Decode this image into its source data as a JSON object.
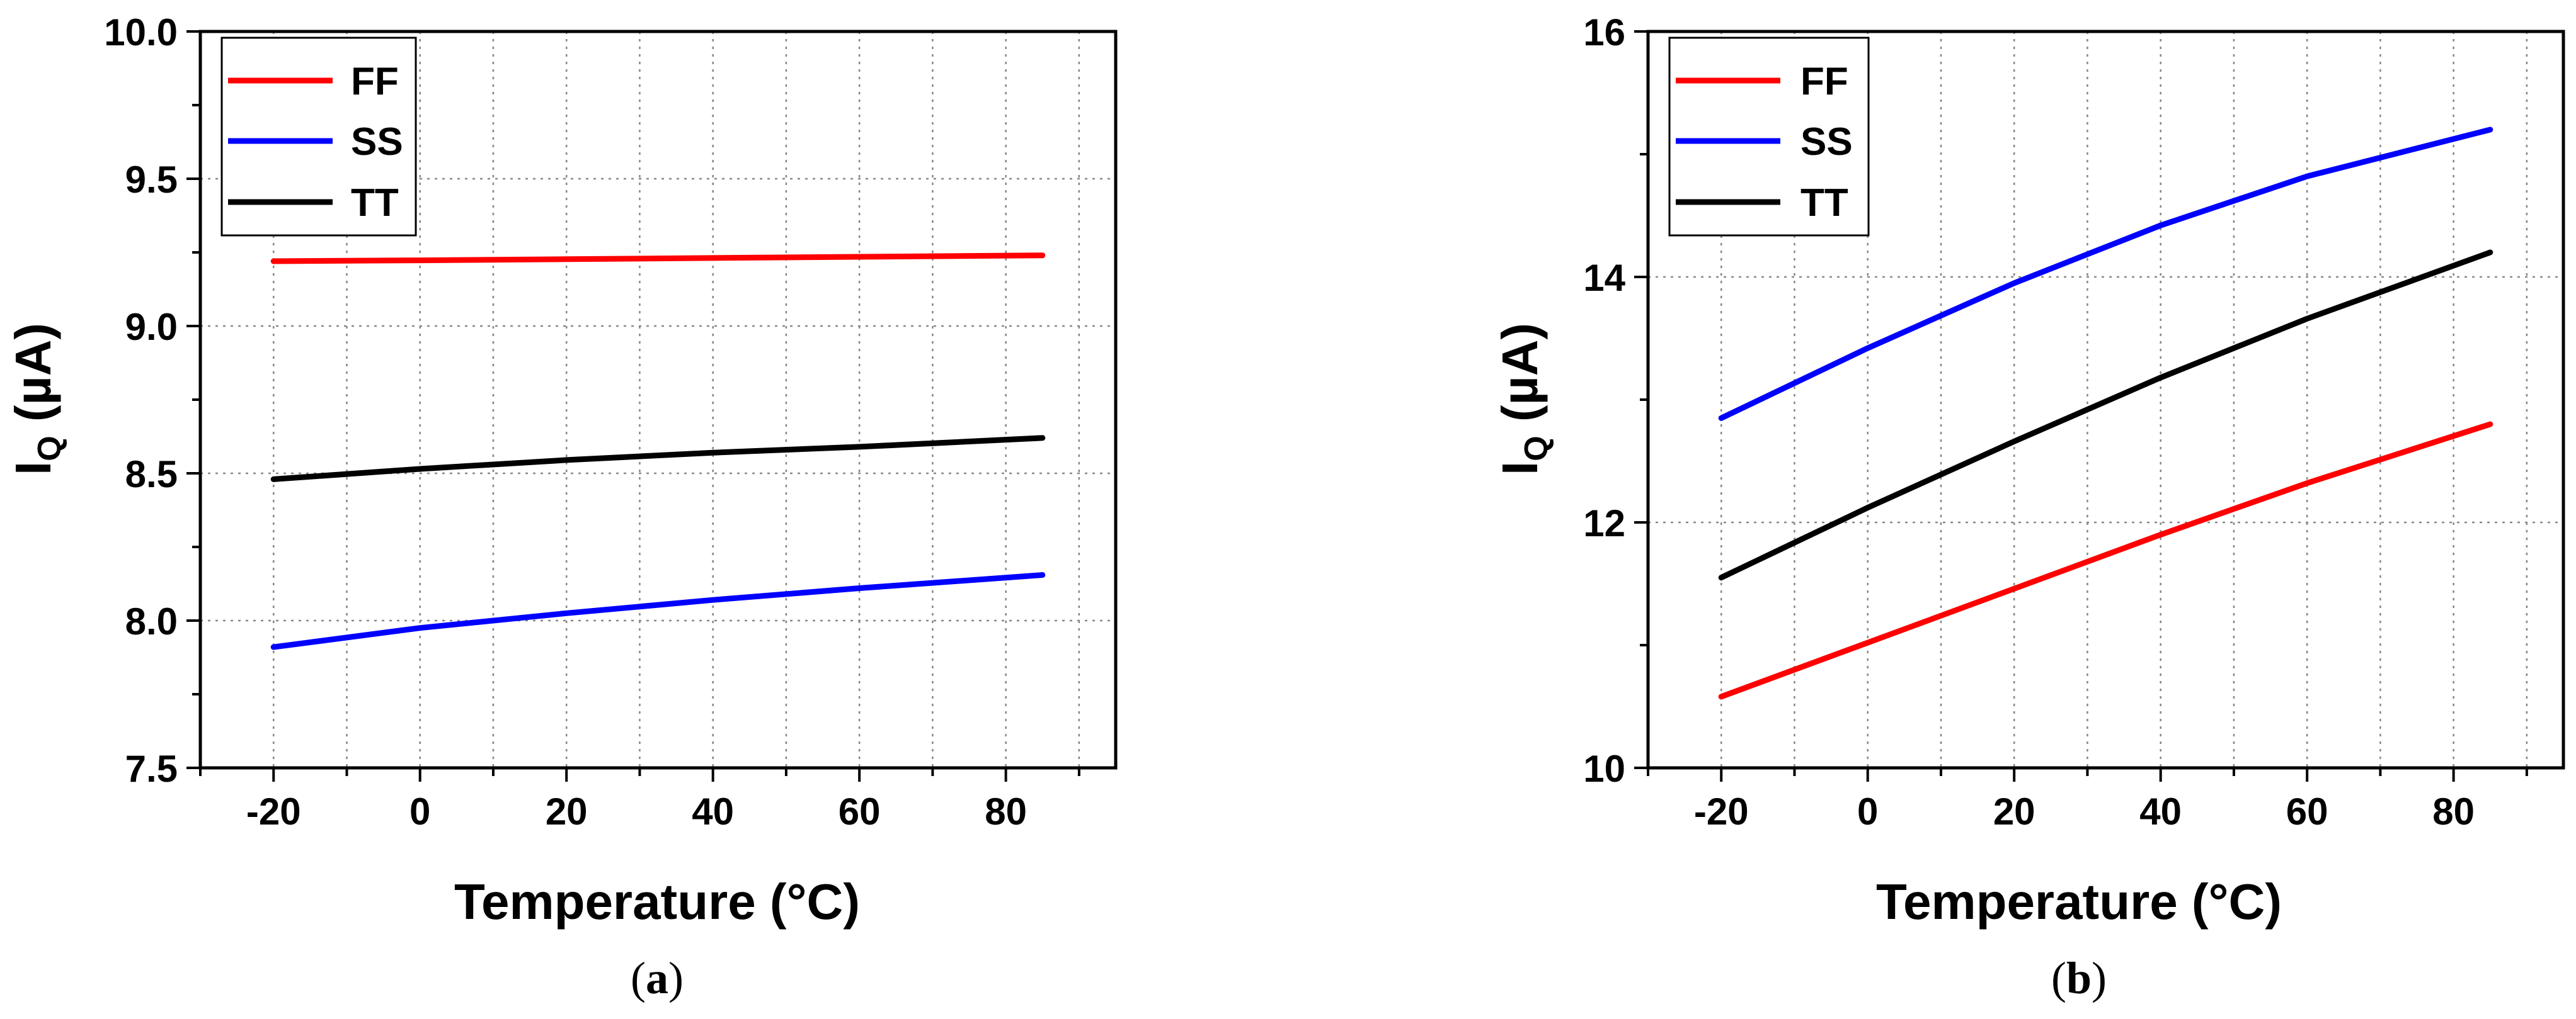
{
  "chart_data": [
    {
      "type": "line",
      "caption_letter": "a",
      "xlabel": "Temperature (°C)",
      "ylabel_main": "I",
      "ylabel_sub": "Q",
      "ylabel_unit": " (µA)",
      "xlim": [
        -30,
        95
      ],
      "ylim": [
        7.5,
        10.0
      ],
      "xticks": [
        -20,
        0,
        20,
        40,
        60,
        80
      ],
      "xtick_labels": [
        "-20",
        "0",
        "20",
        "40",
        "60",
        "80"
      ],
      "yticks": [
        7.5,
        8.0,
        8.5,
        9.0,
        9.5,
        10.0
      ],
      "ytick_labels": [
        "7.5",
        "8.0",
        "8.5",
        "9.0",
        "9.5",
        "10.0"
      ],
      "grid": true,
      "legend_position": "top-left",
      "series": [
        {
          "name": "FF",
          "color": "#ff0000",
          "x": [
            -20,
            0,
            20,
            40,
            60,
            85
          ],
          "values": [
            9.22,
            9.223,
            9.227,
            9.231,
            9.235,
            9.24
          ]
        },
        {
          "name": "SS",
          "color": "#0000ff",
          "x": [
            -20,
            0,
            20,
            40,
            60,
            85
          ],
          "values": [
            7.91,
            7.975,
            8.025,
            8.07,
            8.11,
            8.155
          ]
        },
        {
          "name": "TT",
          "color": "#000000",
          "x": [
            -20,
            0,
            20,
            40,
            60,
            85
          ],
          "values": [
            8.48,
            8.515,
            8.545,
            8.57,
            8.59,
            8.62
          ]
        }
      ]
    },
    {
      "type": "line",
      "caption_letter": "b",
      "xlabel": "Temperature (°C)",
      "ylabel_main": "I",
      "ylabel_sub": "Q",
      "ylabel_unit": " (µA)",
      "xlim": [
        -30,
        95
      ],
      "ylim": [
        10,
        16
      ],
      "xticks": [
        -20,
        0,
        20,
        40,
        60,
        80
      ],
      "xtick_labels": [
        "-20",
        "0",
        "20",
        "40",
        "60",
        "80"
      ],
      "yticks": [
        10,
        12,
        14,
        16
      ],
      "ytick_labels": [
        "10",
        "12",
        "14",
        "16"
      ],
      "grid": true,
      "legend_position": "top-left",
      "series": [
        {
          "name": "FF",
          "color": "#ff0000",
          "x": [
            -20,
            0,
            20,
            40,
            60,
            85
          ],
          "values": [
            10.58,
            11.02,
            11.46,
            11.9,
            12.32,
            12.8
          ]
        },
        {
          "name": "SS",
          "color": "#0000ff",
          "x": [
            -20,
            0,
            20,
            40,
            60,
            85
          ],
          "values": [
            12.85,
            13.42,
            13.95,
            14.42,
            14.82,
            15.2
          ]
        },
        {
          "name": "TT",
          "color": "#000000",
          "x": [
            -20,
            0,
            20,
            40,
            60,
            85
          ],
          "values": [
            11.55,
            12.12,
            12.66,
            13.18,
            13.66,
            14.2
          ]
        }
      ]
    }
  ]
}
